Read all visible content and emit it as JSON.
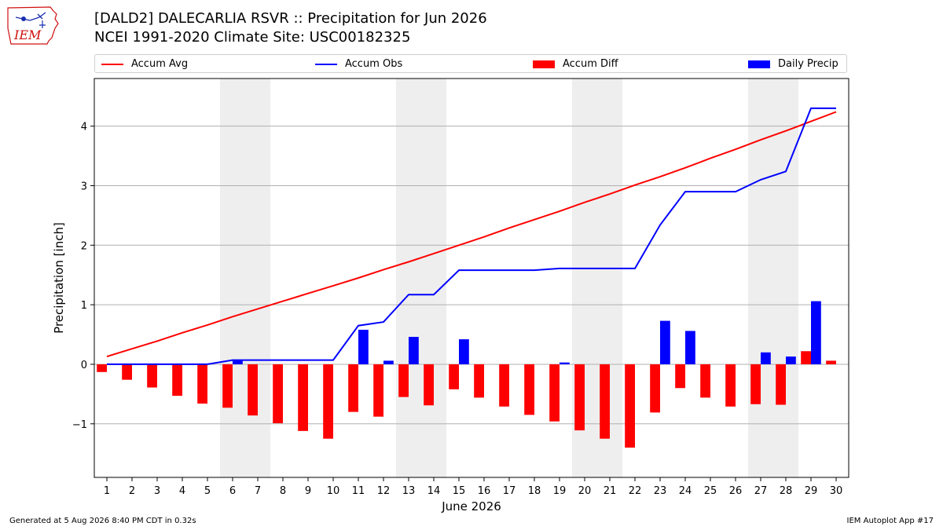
{
  "header": {
    "logo_text": "IEM",
    "title_line1": "[DALD2] DALECARLIA RSVR :: Precipitation for Jun 2026",
    "title_line2": "NCEI 1991-2020 Climate Site: USC00182325"
  },
  "legend": {
    "items": [
      {
        "label": "Accum Avg",
        "kind": "line",
        "color": "#ff0000"
      },
      {
        "label": "Accum Obs",
        "kind": "line",
        "color": "#0000ff"
      },
      {
        "label": "Accum Diff",
        "kind": "bar",
        "color": "#ff0000"
      },
      {
        "label": "Daily Precip",
        "kind": "bar",
        "color": "#0000ff"
      }
    ]
  },
  "footer": {
    "left": "Generated at 5 Aug 2026 8:40 PM CDT in 0.32s",
    "right": "IEM Autoplot App #17"
  },
  "chart_data": {
    "type": "bar",
    "title": "[DALD2] DALECARLIA RSVR :: Precipitation for Jun 2026",
    "xlabel": "June 2026",
    "ylabel": "Precipitation [inch]",
    "ylim": [
      -1.9,
      4.8
    ],
    "yticks": [
      -1,
      0,
      1,
      2,
      3,
      4
    ],
    "ytick_labels": [
      "−1",
      "0",
      "1",
      "2",
      "3",
      "4"
    ],
    "grid": "horizontal",
    "legend_position": "top",
    "weekend_shading": [
      [
        6,
        7
      ],
      [
        13,
        14
      ],
      [
        20,
        21
      ],
      [
        27,
        28
      ]
    ],
    "categories": [
      "1",
      "2",
      "3",
      "4",
      "5",
      "6",
      "7",
      "8",
      "9",
      "10",
      "11",
      "12",
      "13",
      "14",
      "15",
      "16",
      "17",
      "18",
      "19",
      "20",
      "21",
      "22",
      "23",
      "24",
      "25",
      "26",
      "27",
      "28",
      "29",
      "30"
    ],
    "series": [
      {
        "name": "Accum Avg",
        "type": "line",
        "color": "#ff0000",
        "values": [
          0.13,
          0.26,
          0.39,
          0.53,
          0.66,
          0.8,
          0.93,
          1.06,
          1.19,
          1.32,
          1.45,
          1.59,
          1.72,
          1.86,
          2.0,
          2.14,
          2.29,
          2.43,
          2.57,
          2.72,
          2.86,
          3.01,
          3.15,
          3.3,
          3.46,
          3.61,
          3.77,
          3.92,
          4.08,
          4.24
        ]
      },
      {
        "name": "Accum Obs",
        "type": "line",
        "color": "#0000ff",
        "values": [
          0.0,
          0.0,
          0.0,
          0.0,
          0.0,
          0.07,
          0.07,
          0.07,
          0.07,
          0.07,
          0.65,
          0.71,
          1.17,
          1.17,
          1.58,
          1.58,
          1.58,
          1.58,
          1.61,
          1.61,
          1.61,
          1.61,
          2.34,
          2.9,
          2.9,
          2.9,
          3.1,
          3.24,
          4.3,
          4.3
        ]
      },
      {
        "name": "Accum Diff",
        "type": "bar",
        "color": "#ff0000",
        "values": [
          -0.13,
          -0.26,
          -0.39,
          -0.53,
          -0.66,
          -0.73,
          -0.86,
          -0.99,
          -1.12,
          -1.25,
          -0.8,
          -0.88,
          -0.55,
          -0.69,
          -0.42,
          -0.56,
          -0.71,
          -0.85,
          -0.96,
          -1.11,
          -1.25,
          -1.4,
          -0.81,
          -0.4,
          -0.56,
          -0.71,
          -0.67,
          -0.68,
          0.22,
          0.06
        ]
      },
      {
        "name": "Daily Precip",
        "type": "bar",
        "color": "#0000ff",
        "values": [
          0.0,
          0.0,
          0.0,
          0.0,
          0.0,
          0.07,
          0.0,
          0.0,
          0.0,
          0.0,
          0.58,
          0.06,
          0.46,
          0.0,
          0.42,
          0.0,
          0.0,
          0.0,
          0.03,
          0.0,
          0.0,
          0.0,
          0.73,
          0.56,
          0.0,
          0.0,
          0.2,
          0.13,
          1.06,
          0.0
        ]
      }
    ]
  }
}
